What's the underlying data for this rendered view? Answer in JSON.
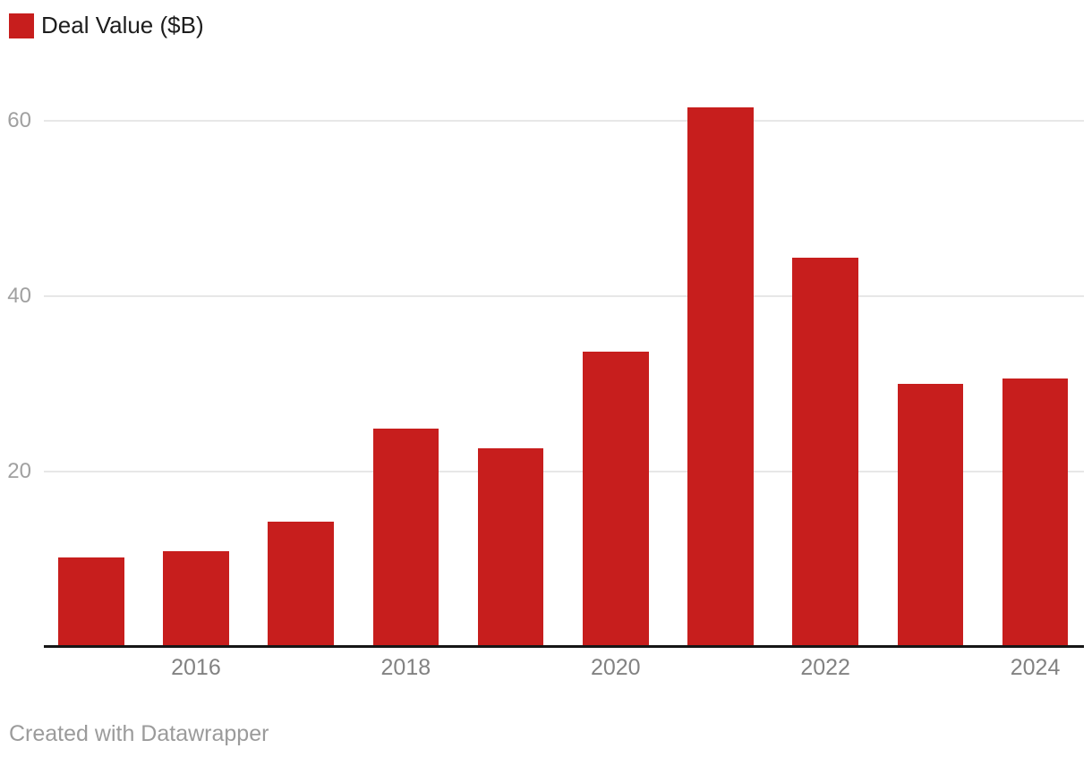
{
  "chart_data": {
    "type": "bar",
    "categories": [
      2015,
      2016,
      2017,
      2018,
      2019,
      2020,
      2021,
      2022,
      2023,
      2024
    ],
    "series": [
      {
        "name": "Deal Value ($B)",
        "values": [
          10.2,
          10.9,
          14.2,
          24.9,
          22.6,
          33.7,
          61.5,
          44.4,
          30.0,
          30.6
        ]
      }
    ],
    "yticks": [
      20,
      40,
      60
    ],
    "xticks": [
      2016,
      2018,
      2020,
      2022,
      2024
    ],
    "ylim": [
      0,
      63
    ],
    "bar_color": "#c71e1d",
    "grid": "horizontal-only",
    "legend_position": "top-left"
  },
  "footer": {
    "text": "Created with Datawrapper"
  }
}
